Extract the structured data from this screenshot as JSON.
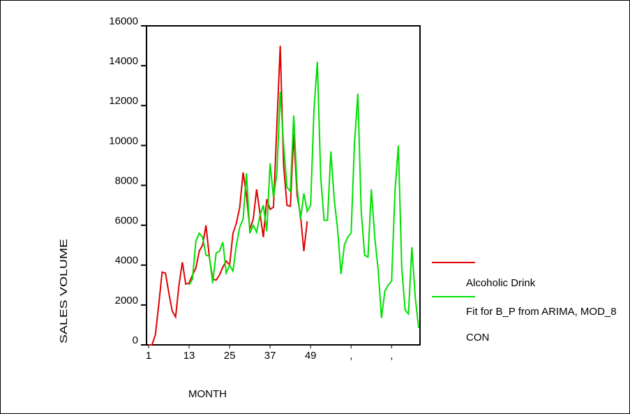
{
  "chart_data": {
    "type": "line",
    "x_label": "MONTH",
    "y_label": "SALES VOLUME",
    "x": [
      1,
      2,
      3,
      4,
      5,
      6,
      7,
      8,
      9,
      10,
      11,
      12,
      13,
      14,
      15,
      16,
      17,
      18,
      19,
      20,
      21,
      22,
      23,
      24,
      25,
      26,
      27,
      28,
      29,
      30,
      31,
      32,
      33,
      34,
      35,
      36,
      37,
      38,
      39,
      40,
      41,
      42,
      43,
      44,
      45,
      46,
      47,
      48,
      49,
      50,
      51,
      52,
      53,
      54,
      55,
      56,
      57,
      58,
      59,
      60,
      61,
      62,
      63,
      64,
      65,
      66,
      67,
      68,
      69,
      70,
      71,
      72,
      73,
      74,
      75,
      76,
      77,
      78,
      79,
      80,
      81
    ],
    "series": [
      {
        "name": "Alcoholic Drink",
        "color": "#e00000",
        "values": [
          0,
          0,
          500,
          2000,
          3650,
          3600,
          2600,
          1700,
          1400,
          3000,
          4150,
          3050,
          3100,
          3500,
          3850,
          4700,
          5000,
          6000,
          4400,
          3300,
          3250,
          3500,
          3900,
          4200,
          4000,
          5600,
          6100,
          6900,
          8650,
          7500,
          5800,
          6300,
          7800,
          6600,
          5400,
          7300,
          6800,
          6900,
          11000,
          15000,
          9000,
          7000,
          6950,
          10600,
          7500,
          6500,
          4700,
          6200,
          null,
          null,
          null,
          null,
          null,
          null,
          null,
          null,
          null,
          null,
          null,
          null,
          null,
          null,
          null,
          null,
          null,
          null,
          null,
          null,
          null,
          null,
          null,
          null,
          null,
          null,
          null,
          null,
          null,
          null,
          null,
          null,
          null
        ]
      },
      {
        "name": "Fit for B_P from ARIMA, MOD_8 CON",
        "color": "#00e000",
        "values": [
          null,
          null,
          null,
          null,
          null,
          null,
          null,
          null,
          null,
          null,
          null,
          null,
          3000,
          3300,
          5200,
          5600,
          5400,
          4500,
          4450,
          3100,
          4600,
          4700,
          5150,
          3600,
          4000,
          3700,
          5000,
          5900,
          6300,
          8600,
          5600,
          6000,
          5650,
          6500,
          7000,
          5700,
          9100,
          7400,
          8600,
          12700,
          10000,
          7900,
          7700,
          11500,
          7900,
          6300,
          7600,
          6700,
          7000,
          11800,
          14200,
          8400,
          6250,
          6250,
          9700,
          7300,
          5800,
          3550,
          5000,
          5400,
          5600,
          10100,
          12600,
          6700,
          4500,
          4400,
          7800,
          5400,
          3800,
          1350,
          2700,
          3000,
          3200,
          7700,
          10000,
          3900,
          1750,
          1550,
          4900,
          2400,
          850
        ]
      }
    ],
    "xlim": [
      1,
      81
    ],
    "xticks": [
      1,
      13,
      25,
      37,
      49,
      {
        "value": 61,
        "label": ","
      },
      {
        "value": 73,
        "label": ","
      }
    ],
    "ylim": [
      0,
      16000
    ],
    "yticks": [
      0,
      2000,
      4000,
      6000,
      8000,
      10000,
      12000,
      14000,
      16000
    ]
  }
}
